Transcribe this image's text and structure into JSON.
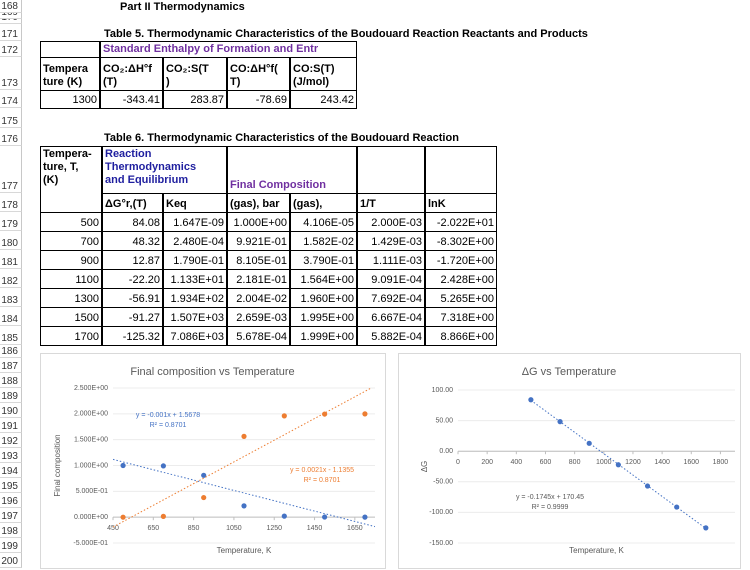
{
  "sheet": {
    "part_title": "Part II Thermodynamics",
    "row_numbers": [
      "168",
      "169",
      "170",
      "171",
      "172",
      "173",
      "174",
      "175",
      "176",
      "177",
      "178",
      "179",
      "180",
      "181",
      "182",
      "183",
      "184",
      "185",
      "186",
      "187",
      "188",
      "189",
      "190",
      "191",
      "192",
      "193",
      "194",
      "195",
      "196",
      "197",
      "198",
      "199",
      "200"
    ]
  },
  "table5": {
    "title": "Table 5. Thermodynamic Characteristics of the Boudouard Reaction Reactants and Products",
    "group_header": "Standard Enthalpy of Formation and Entr",
    "headers": [
      "Tempera\nture (K)",
      "CO₂:ΔH°f\n(T)",
      "CO₂:S(T\n)",
      "CO:ΔH°f(\nT)",
      "CO:S(T)\n(J/mol)"
    ],
    "rows": [
      [
        "1300",
        "-343.41",
        "283.87",
        "-78.69",
        "243.42"
      ]
    ]
  },
  "table6": {
    "title": "Table 6. Thermodynamic Characteristics of the Boudouard Reaction",
    "header_top": [
      "Tempera-\nture, T,\n(K)",
      "Reaction\nThermodynamics\nand Equilibrium",
      "Final Composition"
    ],
    "headers": [
      "ΔG°r,(T)",
      "Keq",
      "(gas), bar",
      "(gas),",
      "1/T",
      "lnK"
    ],
    "rows": [
      [
        "500",
        "84.08",
        "1.647E-09",
        "1.000E+00",
        "4.106E-05",
        "2.000E-03",
        "-2.022E+01"
      ],
      [
        "700",
        "48.32",
        "2.480E-04",
        "9.921E-01",
        "1.582E-02",
        "1.429E-03",
        "-8.302E+00"
      ],
      [
        "900",
        "12.87",
        "1.790E-01",
        "8.105E-01",
        "3.790E-01",
        "1.111E-03",
        "-1.720E+00"
      ],
      [
        "1100",
        "-22.20",
        "1.133E+01",
        "2.181E-01",
        "1.564E+00",
        "9.091E-04",
        "2.428E+00"
      ],
      [
        "1300",
        "-56.91",
        "1.934E+02",
        "2.004E-02",
        "1.960E+00",
        "7.692E-04",
        "5.265E+00"
      ],
      [
        "1500",
        "-91.27",
        "1.507E+03",
        "2.659E-03",
        "1.995E+00",
        "6.667E-04",
        "7.318E+00"
      ],
      [
        "1700",
        "-125.32",
        "7.086E+03",
        "5.678E-04",
        "1.999E+00",
        "5.882E-04",
        "8.866E+00"
      ]
    ]
  },
  "chart_data": [
    {
      "type": "scatter",
      "title": "Final composition vs Temperature",
      "x_label": "Temperature, K",
      "y_label": "Final composition",
      "x": [
        500,
        700,
        900,
        1100,
        1300,
        1500,
        1700
      ],
      "xlim": [
        450,
        1750
      ],
      "xticks": [
        450,
        650,
        850,
        1050,
        1250,
        1450,
        1650
      ],
      "ylim": [
        -0.5,
        2.5
      ],
      "yticks": [
        {
          "value": -0.5,
          "label": "-5.000E-01"
        },
        {
          "value": 0,
          "label": "0.000E+00"
        },
        {
          "value": 0.5,
          "label": "5.000E-01"
        },
        {
          "value": 1,
          "label": "1.000E+00"
        },
        {
          "value": 1.5,
          "label": "1.500E+00"
        },
        {
          "value": 2,
          "label": "2.000E+00"
        },
        {
          "value": 2.5,
          "label": "2.500E+00"
        }
      ],
      "grid": true,
      "series": [
        {
          "color": "#4472c4",
          "values": [
            1.0,
            0.9921,
            0.8105,
            0.2181,
            0.02004,
            0.002659,
            0.0005678
          ],
          "trendline": {
            "slope": -0.001,
            "intercept": 1.5678,
            "equation": "y = -0.001x + 1.5678",
            "r_squared": "R² = 0.8701"
          }
        },
        {
          "color": "#ed7d31",
          "values": [
            4.106e-05,
            0.01582,
            0.379,
            1.564,
            1.96,
            1.995,
            1.999
          ],
          "trendline": {
            "slope": 0.0021,
            "intercept": -1.1355,
            "equation": "y = 0.0021x - 1.1355",
            "r_squared": "R² = 0.8701"
          }
        }
      ]
    },
    {
      "type": "scatter",
      "title": "ΔG vs Temperature",
      "x_label": "Temperature, K",
      "y_label": "ΔG",
      "x": [
        500,
        700,
        900,
        1100,
        1300,
        1500,
        1700
      ],
      "xlim": [
        0,
        1900
      ],
      "xticks": [
        0,
        200,
        400,
        600,
        800,
        1000,
        1200,
        1400,
        1600,
        1800
      ],
      "ylim": [
        -150,
        100
      ],
      "yticks": [
        {
          "value": -150,
          "label": "-150.00"
        },
        {
          "value": -100,
          "label": "-100.00"
        },
        {
          "value": -50,
          "label": "-50.00"
        },
        {
          "value": 0,
          "label": "0.00"
        },
        {
          "value": 50,
          "label": "50.00"
        },
        {
          "value": 100,
          "label": "100.00"
        }
      ],
      "grid": true,
      "series": [
        {
          "color": "#4472c4",
          "values": [
            84.08,
            48.32,
            12.87,
            -22.2,
            -56.91,
            -91.27,
            -125.32
          ],
          "trendline": {
            "slope": -0.1745,
            "intercept": 170.45,
            "equation": "y = -0.1745x + 170.45",
            "r_squared": "R² = 0.9999"
          }
        }
      ]
    }
  ]
}
